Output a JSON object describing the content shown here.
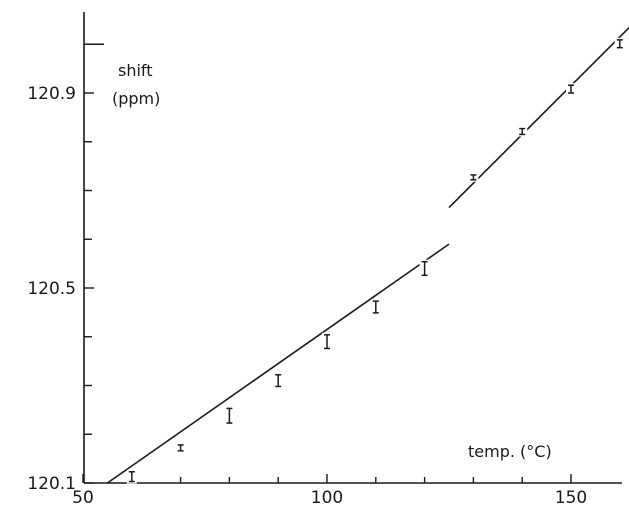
{
  "chart_data": {
    "type": "scatter",
    "title": "",
    "ylabel_line1": "shift",
    "ylabel_line2": "(ppm)",
    "xlabel": "temp. (°C)",
    "xlim": [
      50,
      162
    ],
    "ylim": [
      120.1,
      121.0
    ],
    "x_ticks": [
      {
        "value": 50,
        "label": "50"
      },
      {
        "value": 100,
        "label": "100"
      },
      {
        "value": 150,
        "label": "150"
      }
    ],
    "y_ticks": [
      {
        "value": 120.1,
        "label": "120.1"
      },
      {
        "value": 120.5,
        "label": "120.5"
      },
      {
        "value": 120.9,
        "label": "120.9"
      }
    ],
    "y_minor_ticks": [
      120.2,
      120.3,
      120.4,
      120.6,
      120.7,
      120.8,
      121.0
    ],
    "x_minor_ticks": [
      60,
      70,
      80,
      90,
      110,
      120,
      130,
      140
    ],
    "points": [
      {
        "x": 60,
        "y": 120.113,
        "err": 0.01
      },
      {
        "x": 70,
        "y": 120.172,
        "err": 0.006
      },
      {
        "x": 80,
        "y": 120.238,
        "err": 0.015
      },
      {
        "x": 90,
        "y": 120.31,
        "err": 0.012
      },
      {
        "x": 100,
        "y": 120.39,
        "err": 0.014
      },
      {
        "x": 110,
        "y": 120.461,
        "err": 0.012
      },
      {
        "x": 120,
        "y": 120.54,
        "err": 0.014
      },
      {
        "x": 130,
        "y": 120.727,
        "err": 0.005
      },
      {
        "x": 140,
        "y": 120.821,
        "err": 0.006
      },
      {
        "x": 150,
        "y": 120.908,
        "err": 0.008
      },
      {
        "x": 160,
        "y": 121.001,
        "err": 0.008
      }
    ],
    "fit_segments": [
      {
        "x": [
          55,
          125
        ],
        "y": [
          120.1,
          120.59
        ]
      },
      {
        "x": [
          125,
          162
        ],
        "y": [
          120.665,
          121.035
        ]
      }
    ]
  }
}
